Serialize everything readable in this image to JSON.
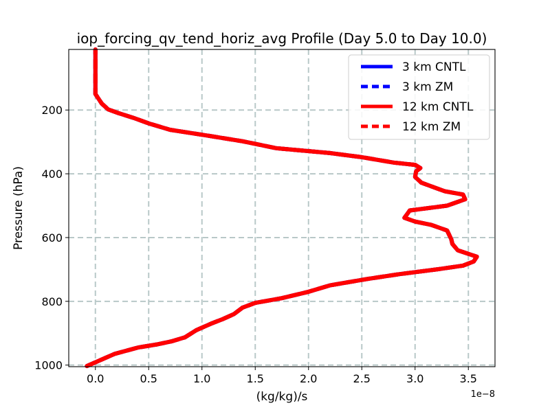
{
  "chart_data": {
    "type": "line",
    "title": "iop_forcing_qv_tend_horiz_avg Profile (Day 5.0 to Day 10.0)",
    "xlabel": "(kg/kg)/s",
    "ylabel": "Pressure (hPa)",
    "x_offset_label": "1e−8",
    "xlim": [
      -0.25,
      3.75
    ],
    "ylim": [
      1005,
      10
    ],
    "y_inverted": true,
    "grid": true,
    "legend_position": "top-right",
    "xticks": [
      {
        "value": 0.0,
        "label": "0.0"
      },
      {
        "value": 0.5,
        "label": "0.5"
      },
      {
        "value": 1.0,
        "label": "1.0"
      },
      {
        "value": 1.5,
        "label": "1.5"
      },
      {
        "value": 2.0,
        "label": "2.0"
      },
      {
        "value": 2.5,
        "label": "2.5"
      },
      {
        "value": 3.0,
        "label": "3.0"
      },
      {
        "value": 3.5,
        "label": "3.5"
      }
    ],
    "yticks": [
      {
        "value": 200,
        "label": "200"
      },
      {
        "value": 400,
        "label": "400"
      },
      {
        "value": 600,
        "label": "600"
      },
      {
        "value": 800,
        "label": "800"
      },
      {
        "value": 1000,
        "label": "1000"
      }
    ],
    "series": [
      {
        "name": "3 km CNTL",
        "color": "#0000ff",
        "dash": "solid",
        "points": [
          [
            -0.08,
            1003
          ],
          [
            0.18,
            965
          ],
          [
            0.4,
            945
          ],
          [
            0.58,
            935
          ],
          [
            0.72,
            925
          ],
          [
            0.84,
            913
          ],
          [
            0.95,
            890
          ],
          [
            1.1,
            868
          ],
          [
            1.2,
            855
          ],
          [
            1.3,
            840
          ],
          [
            1.38,
            820
          ],
          [
            1.5,
            805
          ],
          [
            1.75,
            790
          ],
          [
            2.0,
            770
          ],
          [
            2.2,
            750
          ],
          [
            2.55,
            730
          ],
          [
            2.85,
            715
          ],
          [
            3.2,
            700
          ],
          [
            3.45,
            688
          ],
          [
            3.55,
            675
          ],
          [
            3.58,
            660
          ],
          [
            3.4,
            640
          ],
          [
            3.35,
            620
          ],
          [
            3.34,
            605
          ],
          [
            3.3,
            578
          ],
          [
            3.15,
            560
          ],
          [
            3.0,
            550
          ],
          [
            2.9,
            538
          ],
          [
            2.95,
            515
          ],
          [
            3.3,
            500
          ],
          [
            3.47,
            480
          ],
          [
            3.45,
            465
          ],
          [
            3.28,
            455
          ],
          [
            3.06,
            428
          ],
          [
            3.0,
            410
          ],
          [
            3.01,
            392
          ],
          [
            3.05,
            382
          ],
          [
            3.0,
            372
          ],
          [
            2.8,
            365
          ],
          [
            2.5,
            348
          ],
          [
            2.2,
            335
          ],
          [
            1.7,
            320
          ],
          [
            1.38,
            298
          ],
          [
            1.05,
            280
          ],
          [
            0.7,
            262
          ],
          [
            0.5,
            242
          ],
          [
            0.36,
            225
          ],
          [
            0.22,
            210
          ],
          [
            0.12,
            198
          ],
          [
            0.06,
            180
          ],
          [
            0.0,
            150
          ],
          [
            0.0,
            100
          ],
          [
            0.0,
            50
          ],
          [
            0.0,
            10
          ]
        ]
      },
      {
        "name": "3 km ZM",
        "color": "#0000ff",
        "dash": "dashed",
        "points": [
          [
            -0.08,
            1003
          ],
          [
            0.18,
            965
          ],
          [
            0.4,
            945
          ],
          [
            0.58,
            935
          ],
          [
            0.72,
            925
          ],
          [
            0.84,
            913
          ],
          [
            0.95,
            890
          ],
          [
            1.1,
            868
          ],
          [
            1.2,
            855
          ],
          [
            1.3,
            840
          ],
          [
            1.38,
            820
          ],
          [
            1.5,
            805
          ],
          [
            1.75,
            790
          ],
          [
            2.0,
            770
          ],
          [
            2.2,
            750
          ],
          [
            2.55,
            730
          ],
          [
            2.85,
            715
          ],
          [
            3.2,
            700
          ],
          [
            3.45,
            688
          ],
          [
            3.55,
            675
          ],
          [
            3.58,
            660
          ],
          [
            3.4,
            640
          ],
          [
            3.35,
            620
          ],
          [
            3.34,
            605
          ],
          [
            3.3,
            578
          ],
          [
            3.15,
            560
          ],
          [
            3.0,
            550
          ],
          [
            2.9,
            538
          ],
          [
            2.95,
            515
          ],
          [
            3.3,
            500
          ],
          [
            3.47,
            480
          ],
          [
            3.45,
            465
          ],
          [
            3.28,
            455
          ],
          [
            3.06,
            428
          ],
          [
            3.0,
            410
          ],
          [
            3.01,
            392
          ],
          [
            3.05,
            382
          ],
          [
            3.0,
            372
          ],
          [
            2.8,
            365
          ],
          [
            2.5,
            348
          ],
          [
            2.2,
            335
          ],
          [
            1.7,
            320
          ],
          [
            1.38,
            298
          ],
          [
            1.05,
            280
          ],
          [
            0.7,
            262
          ],
          [
            0.5,
            242
          ],
          [
            0.36,
            225
          ],
          [
            0.22,
            210
          ],
          [
            0.12,
            198
          ],
          [
            0.06,
            180
          ],
          [
            0.0,
            150
          ],
          [
            0.0,
            100
          ],
          [
            0.0,
            50
          ],
          [
            0.0,
            10
          ]
        ]
      },
      {
        "name": "12 km CNTL",
        "color": "#ff0000",
        "dash": "solid",
        "points": [
          [
            -0.08,
            1003
          ],
          [
            0.18,
            965
          ],
          [
            0.4,
            945
          ],
          [
            0.58,
            935
          ],
          [
            0.72,
            925
          ],
          [
            0.84,
            913
          ],
          [
            0.95,
            890
          ],
          [
            1.1,
            868
          ],
          [
            1.2,
            855
          ],
          [
            1.3,
            840
          ],
          [
            1.38,
            820
          ],
          [
            1.5,
            805
          ],
          [
            1.75,
            790
          ],
          [
            2.0,
            770
          ],
          [
            2.2,
            750
          ],
          [
            2.55,
            730
          ],
          [
            2.85,
            715
          ],
          [
            3.2,
            700
          ],
          [
            3.45,
            688
          ],
          [
            3.55,
            675
          ],
          [
            3.58,
            660
          ],
          [
            3.4,
            640
          ],
          [
            3.35,
            620
          ],
          [
            3.34,
            605
          ],
          [
            3.3,
            578
          ],
          [
            3.15,
            560
          ],
          [
            3.0,
            550
          ],
          [
            2.9,
            538
          ],
          [
            2.95,
            515
          ],
          [
            3.3,
            500
          ],
          [
            3.47,
            480
          ],
          [
            3.45,
            465
          ],
          [
            3.28,
            455
          ],
          [
            3.06,
            428
          ],
          [
            3.0,
            410
          ],
          [
            3.01,
            392
          ],
          [
            3.05,
            382
          ],
          [
            3.0,
            372
          ],
          [
            2.8,
            365
          ],
          [
            2.5,
            348
          ],
          [
            2.2,
            335
          ],
          [
            1.7,
            320
          ],
          [
            1.38,
            298
          ],
          [
            1.05,
            280
          ],
          [
            0.7,
            262
          ],
          [
            0.5,
            242
          ],
          [
            0.36,
            225
          ],
          [
            0.22,
            210
          ],
          [
            0.12,
            198
          ],
          [
            0.06,
            180
          ],
          [
            0.0,
            150
          ],
          [
            0.0,
            100
          ],
          [
            0.0,
            50
          ],
          [
            0.0,
            10
          ]
        ]
      },
      {
        "name": "12 km ZM",
        "color": "#ff0000",
        "dash": "dashed",
        "points": [
          [
            -0.08,
            1003
          ],
          [
            0.18,
            965
          ],
          [
            0.4,
            945
          ],
          [
            0.58,
            935
          ],
          [
            0.72,
            925
          ],
          [
            0.84,
            913
          ],
          [
            0.95,
            890
          ],
          [
            1.1,
            868
          ],
          [
            1.2,
            855
          ],
          [
            1.3,
            840
          ],
          [
            1.38,
            820
          ],
          [
            1.5,
            805
          ],
          [
            1.75,
            790
          ],
          [
            2.0,
            770
          ],
          [
            2.2,
            750
          ],
          [
            2.55,
            730
          ],
          [
            2.85,
            715
          ],
          [
            3.2,
            700
          ],
          [
            3.45,
            688
          ],
          [
            3.55,
            675
          ],
          [
            3.58,
            660
          ],
          [
            3.4,
            640
          ],
          [
            3.35,
            620
          ],
          [
            3.34,
            605
          ],
          [
            3.3,
            578
          ],
          [
            3.15,
            560
          ],
          [
            3.0,
            550
          ],
          [
            2.9,
            538
          ],
          [
            2.95,
            515
          ],
          [
            3.3,
            500
          ],
          [
            3.47,
            480
          ],
          [
            3.45,
            465
          ],
          [
            3.28,
            455
          ],
          [
            3.06,
            428
          ],
          [
            3.0,
            410
          ],
          [
            3.01,
            392
          ],
          [
            3.05,
            382
          ],
          [
            3.0,
            372
          ],
          [
            2.8,
            365
          ],
          [
            2.5,
            348
          ],
          [
            2.2,
            335
          ],
          [
            1.7,
            320
          ],
          [
            1.38,
            298
          ],
          [
            1.05,
            280
          ],
          [
            0.7,
            262
          ],
          [
            0.5,
            242
          ],
          [
            0.36,
            225
          ],
          [
            0.22,
            210
          ],
          [
            0.12,
            198
          ],
          [
            0.06,
            180
          ],
          [
            0.0,
            150
          ],
          [
            0.0,
            100
          ],
          [
            0.0,
            50
          ],
          [
            0.0,
            10
          ]
        ]
      }
    ]
  }
}
